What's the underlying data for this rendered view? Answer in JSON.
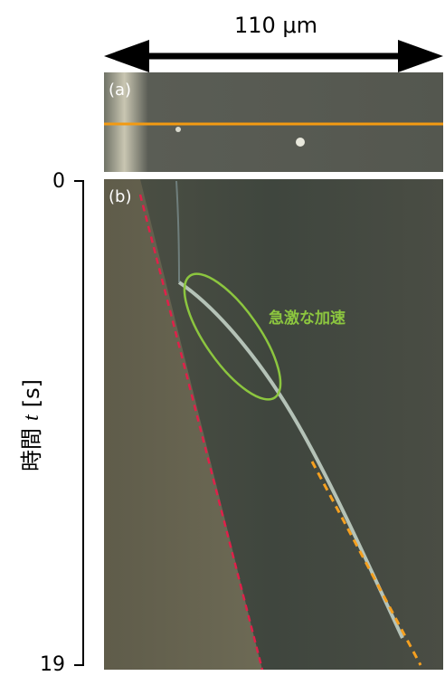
{
  "scale_bar": {
    "label": "110 μm"
  },
  "panels": {
    "a": {
      "label": "(a)"
    },
    "b": {
      "label": "(b)",
      "annotation": "急激な加速"
    }
  },
  "time_axis": {
    "start": 0,
    "end": 19,
    "label_prefix": "時間",
    "variable": "t",
    "unit": "[s]"
  }
}
